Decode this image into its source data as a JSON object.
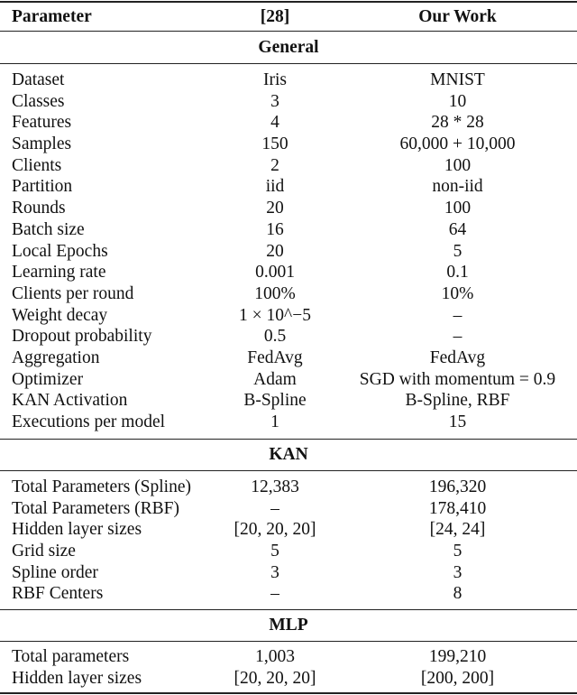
{
  "header": {
    "parameter": "Parameter",
    "ref": "[28]",
    "ours": "Our Work"
  },
  "sections": [
    {
      "title": "General",
      "rows": [
        [
          "Dataset",
          "Iris",
          "MNIST"
        ],
        [
          "Classes",
          "3",
          "10"
        ],
        [
          "Features",
          "4",
          "28 * 28"
        ],
        [
          "Samples",
          "150",
          "60,000 + 10,000"
        ],
        [
          "Clients",
          "2",
          "100"
        ],
        [
          "Partition",
          "iid",
          "non-iid"
        ],
        [
          "Rounds",
          "20",
          "100"
        ],
        [
          "Batch size",
          "16",
          "64"
        ],
        [
          "Local Epochs",
          "20",
          "5"
        ],
        [
          "Learning rate",
          "0.001",
          "0.1"
        ],
        [
          "Clients per round",
          "100%",
          "10%"
        ],
        [
          "Weight decay",
          "1 × 10^−5",
          "–"
        ],
        [
          "Dropout probability",
          "0.5",
          "–"
        ],
        [
          "Aggregation",
          "FedAvg",
          "FedAvg"
        ],
        [
          "Optimizer",
          "Adam",
          "SGD with momentum = 0.9"
        ],
        [
          "KAN Activation",
          "B-Spline",
          "B-Spline, RBF"
        ],
        [
          "Executions per model",
          "1",
          "15"
        ]
      ]
    },
    {
      "title": "KAN",
      "rows": [
        [
          "Total Parameters (Spline)",
          "12,383",
          "196,320"
        ],
        [
          "Total Parameters (RBF)",
          "–",
          "178,410"
        ],
        [
          "Hidden layer sizes",
          "[20, 20, 20]",
          "[24, 24]"
        ],
        [
          "Grid size",
          "5",
          "5"
        ],
        [
          "Spline order",
          "3",
          "3"
        ],
        [
          "RBF Centers",
          "–",
          "8"
        ]
      ]
    },
    {
      "title": "MLP",
      "rows": [
        [
          "Total parameters",
          "1,003",
          "199,210"
        ],
        [
          "Hidden layer sizes",
          "[20, 20, 20]",
          "[200, 200]"
        ]
      ]
    }
  ]
}
